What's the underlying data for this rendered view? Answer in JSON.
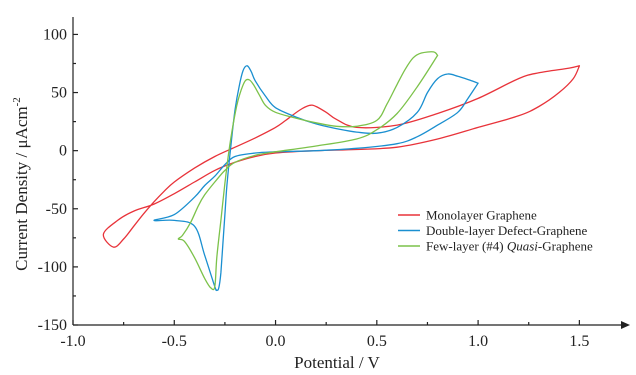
{
  "chart_data": {
    "type": "line",
    "title": "",
    "xlabel": "Potential / V",
    "ylabel_main": "Current Density / μAcm",
    "ylabel_sup": "-2",
    "xlim": [
      -1.0,
      1.75
    ],
    "ylim": [
      -150,
      115
    ],
    "x_ticks": [
      -1.0,
      -0.5,
      0.0,
      0.5,
      1.0,
      1.5
    ],
    "x_tick_labels": [
      "-1.0",
      "-0.5",
      "0.0",
      "0.5",
      "1.0",
      "1.5"
    ],
    "y_ticks": [
      -150,
      -100,
      -50,
      0,
      50,
      100
    ],
    "y_tick_labels": [
      "-150",
      "-100",
      "-50",
      "0",
      "50",
      "100"
    ],
    "legend_position": "bottom-right",
    "grid": false,
    "series": [
      {
        "name": "Monolayer Graphene",
        "legend_parts": [
          {
            "text": "Monolayer Graphene",
            "italic": false
          }
        ],
        "color": "#e8333a",
        "x": [
          1.5,
          1.45,
          1.3,
          1.2,
          1.0,
          0.8,
          0.6,
          0.4,
          0.3,
          0.25,
          0.2,
          0.17,
          0.12,
          0.05,
          0.0,
          -0.1,
          -0.2,
          -0.3,
          -0.4,
          -0.5,
          -0.55,
          -0.6,
          -0.65,
          -0.7,
          -0.75,
          -0.8,
          -0.85,
          -0.78,
          -0.7,
          -0.6,
          -0.5,
          -0.4,
          -0.3,
          -0.2,
          -0.1,
          0.0,
          0.2,
          0.4,
          0.6,
          0.8,
          1.0,
          1.2,
          1.3,
          1.4,
          1.47,
          1.5
        ],
        "y": [
          73,
          71,
          67,
          62,
          45,
          32,
          22,
          20,
          27,
          33,
          38,
          39,
          35,
          26,
          20,
          11,
          3,
          -5,
          -15,
          -27,
          -35,
          -44,
          -54,
          -65,
          -76,
          -83,
          -72,
          -60,
          -52,
          -46,
          -37,
          -27,
          -17,
          -10,
          -5,
          -2,
          0,
          1,
          3,
          10,
          20,
          30,
          38,
          50,
          62,
          73
        ]
      },
      {
        "name": "Double-layer Defect-Graphene",
        "legend_parts": [
          {
            "text": "Double-layer Defect-Graphene",
            "italic": false
          }
        ],
        "color": "#1a8fd0",
        "x": [
          1.0,
          0.97,
          0.9,
          0.85,
          0.8,
          0.75,
          0.7,
          0.6,
          0.5,
          0.4,
          0.3,
          0.2,
          0.1,
          0.0,
          -0.05,
          -0.1,
          -0.12,
          -0.14,
          -0.16,
          -0.18,
          -0.2,
          -0.22,
          -0.24,
          -0.25,
          -0.26,
          -0.27,
          -0.28,
          -0.29,
          -0.3,
          -0.35,
          -0.4,
          -0.5,
          -0.6,
          -0.5,
          -0.4,
          -0.35,
          -0.3,
          -0.25,
          -0.2,
          -0.1,
          0.0,
          0.2,
          0.4,
          0.6,
          0.7,
          0.8,
          0.9,
          0.95,
          1.0
        ],
        "y": [
          58,
          60,
          64,
          66,
          62,
          50,
          33,
          20,
          15,
          16,
          19,
          23,
          29,
          37,
          47,
          60,
          68,
          73,
          69,
          55,
          35,
          5,
          -30,
          -55,
          -80,
          -105,
          -118,
          -120,
          -117,
          -90,
          -65,
          -60,
          -60,
          -55,
          -40,
          -30,
          -22,
          -12,
          -5,
          -2,
          -1,
          0,
          2,
          6,
          12,
          22,
          33,
          45,
          58
        ]
      },
      {
        "name": "Few-layer (#4) Quasi-Graphene",
        "legend_parts": [
          {
            "text": "Few-layer (#4) ",
            "italic": false
          },
          {
            "text": "Quasi",
            "italic": true
          },
          {
            "text": "-Graphene",
            "italic": false
          }
        ],
        "color": "#7cc24a",
        "x": [
          0.8,
          0.78,
          0.72,
          0.68,
          0.64,
          0.6,
          0.55,
          0.5,
          0.4,
          0.3,
          0.2,
          0.1,
          0.0,
          -0.05,
          -0.08,
          -0.11,
          -0.13,
          -0.15,
          -0.17,
          -0.19,
          -0.21,
          -0.23,
          -0.25,
          -0.27,
          -0.29,
          -0.3,
          -0.32,
          -0.35,
          -0.4,
          -0.45,
          -0.48,
          -0.46,
          -0.42,
          -0.38,
          -0.35,
          -0.3,
          -0.25,
          -0.2,
          -0.1,
          0.0,
          0.2,
          0.4,
          0.5,
          0.6,
          0.7,
          0.8
        ],
        "y": [
          82,
          85,
          84,
          80,
          70,
          57,
          40,
          26,
          21,
          21,
          24,
          28,
          33,
          39,
          48,
          57,
          61,
          60,
          52,
          40,
          22,
          0,
          -28,
          -60,
          -92,
          -117,
          -118,
          -110,
          -92,
          -78,
          -76,
          -73,
          -62,
          -47,
          -38,
          -27,
          -17,
          -10,
          -4,
          -1,
          4,
          10,
          18,
          32,
          55,
          82
        ]
      }
    ]
  }
}
